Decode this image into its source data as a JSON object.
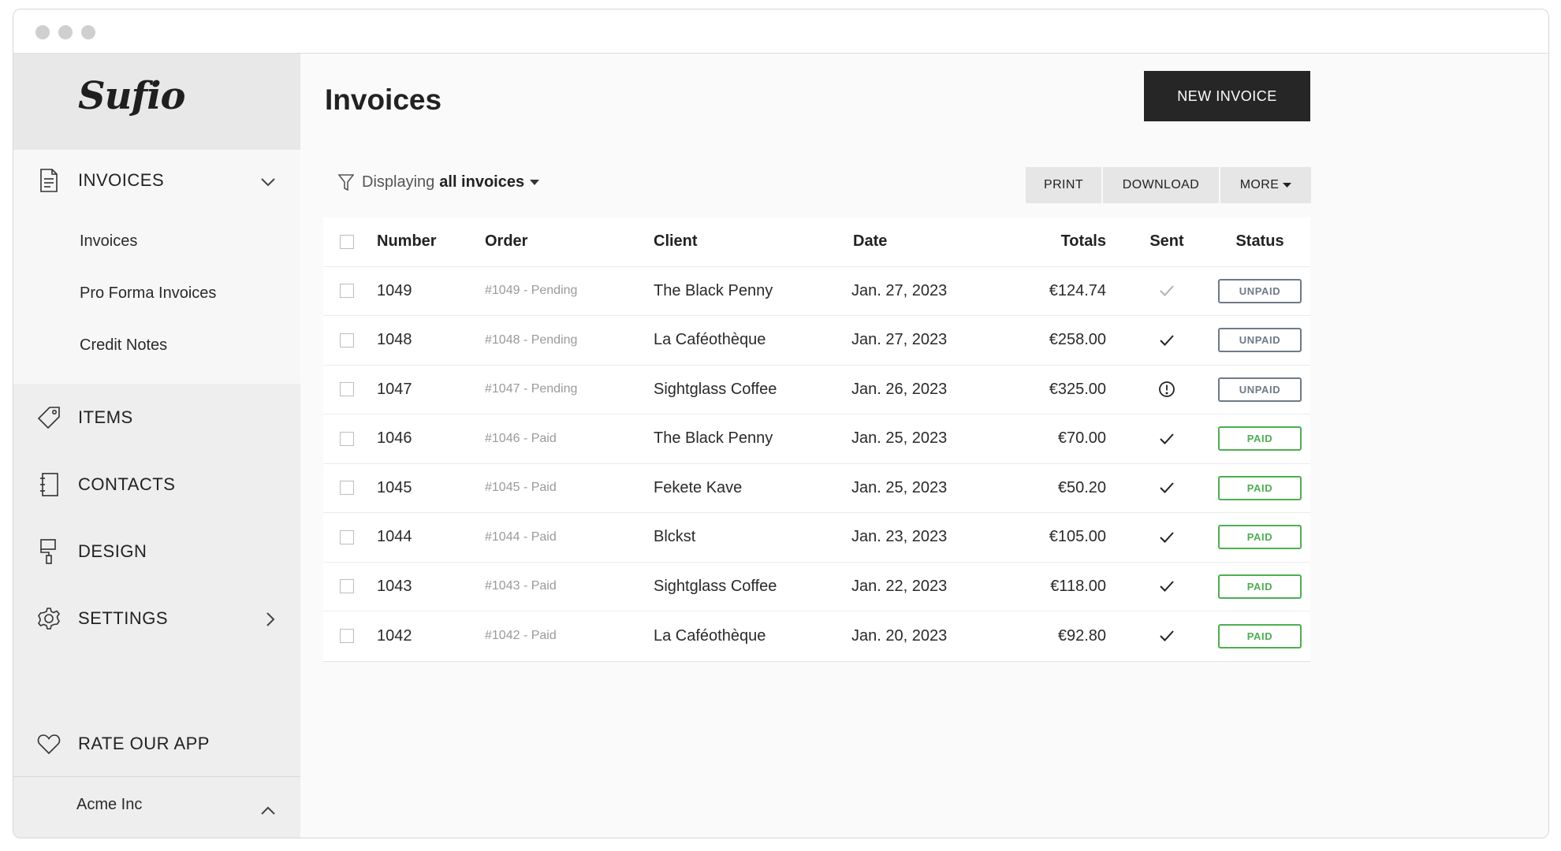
{
  "app": {
    "logo": "Sufio"
  },
  "sidebar": {
    "invoices_label": "INVOICES",
    "sub_items": [
      "Invoices",
      "Pro Forma Invoices",
      "Credit Notes"
    ],
    "items_label": "ITEMS",
    "contacts_label": "CONTACTS",
    "design_label": "DESIGN",
    "settings_label": "SETTINGS",
    "rate_label": "RATE OUR APP",
    "account_name": "Acme Inc"
  },
  "main": {
    "title": "Invoices",
    "new_invoice_label": "NEW INVOICE",
    "filter": {
      "prefix": "Displaying",
      "value": "all invoices"
    },
    "actions": {
      "print": "PRINT",
      "download": "DOWNLOAD",
      "more": "MORE"
    }
  },
  "table": {
    "headers": {
      "number": "Number",
      "order": "Order",
      "client": "Client",
      "date": "Date",
      "totals": "Totals",
      "sent": "Sent",
      "status": "Status"
    },
    "rows": [
      {
        "number": "1049",
        "order": "#1049 - Pending",
        "client": "The Black Penny",
        "date": "Jan. 27, 2023",
        "total": "€124.74",
        "sent": "check-light",
        "status": "UNPAID"
      },
      {
        "number": "1048",
        "order": "#1048 - Pending",
        "client": "La Caféothèque",
        "date": "Jan. 27, 2023",
        "total": "€258.00",
        "sent": "check",
        "status": "UNPAID"
      },
      {
        "number": "1047",
        "order": "#1047 - Pending",
        "client": "Sightglass Coffee",
        "date": "Jan. 26, 2023",
        "total": "€325.00",
        "sent": "alert",
        "status": "UNPAID"
      },
      {
        "number": "1046",
        "order": "#1046 - Paid",
        "client": "The Black Penny",
        "date": "Jan. 25, 2023",
        "total": "€70.00",
        "sent": "check",
        "status": "PAID"
      },
      {
        "number": "1045",
        "order": "#1045 - Paid",
        "client": "Fekete Kave",
        "date": "Jan. 25, 2023",
        "total": "€50.20",
        "sent": "check",
        "status": "PAID"
      },
      {
        "number": "1044",
        "order": "#1044 - Paid",
        "client": "Blckst",
        "date": "Jan. 23, 2023",
        "total": "€105.00",
        "sent": "check",
        "status": "PAID"
      },
      {
        "number": "1043",
        "order": "#1043 - Paid",
        "client": "Sightglass Coffee",
        "date": "Jan. 22, 2023",
        "total": "€118.00",
        "sent": "check",
        "status": "PAID"
      },
      {
        "number": "1042",
        "order": "#1042 - Paid",
        "client": "La Caféothèque",
        "date": "Jan. 20, 2023",
        "total": "€92.80",
        "sent": "check",
        "status": "PAID"
      }
    ]
  },
  "colors": {
    "paid": "#4caf50",
    "unpaid": "#6e7a86",
    "primary_button": "#262626"
  }
}
